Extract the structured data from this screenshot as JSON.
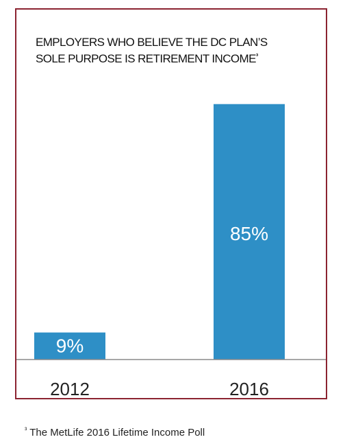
{
  "footnote": {
    "mark": "³",
    "text": "The MetLife 2016 Lifetime Income Poll"
  },
  "chart_data": {
    "type": "bar",
    "title_line1": "EMPLOYERS WHO BELIEVE THE DC PLAN’S",
    "title_line2": "SOLE PURPOSE IS RETIREMENT INCOME",
    "title_mark": "³",
    "categories": [
      "2012",
      "2016"
    ],
    "values": [
      9,
      85
    ],
    "data_labels": [
      "9%",
      "85%"
    ],
    "ylim": [
      0,
      100
    ],
    "grid": false,
    "legend": "none",
    "colors": {
      "bar": "#2e8fc6",
      "baseline": "#8a8a8a",
      "border": "#8b2330",
      "label_inside": "#ffffff"
    }
  }
}
